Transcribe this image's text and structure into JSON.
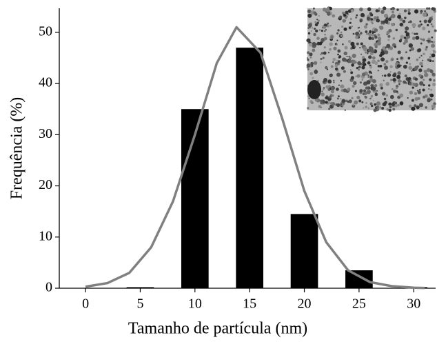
{
  "chart_data": {
    "type": "bar",
    "x_label": "Tamanho de partícula (nm)",
    "y_label": "Frequência (%)",
    "x": [
      5,
      10,
      15,
      20,
      25,
      30
    ],
    "values": [
      0.2,
      35,
      47,
      14.5,
      3.5,
      0.2
    ],
    "color": "#000000",
    "curve": {
      "type": "line",
      "color": "#808080",
      "x": [
        0,
        2,
        4,
        6,
        8,
        10,
        12,
        13.8,
        16,
        18,
        20,
        22,
        24,
        26,
        28,
        30,
        31
      ],
      "values": [
        0.3,
        1,
        3,
        8,
        17,
        30,
        44,
        51,
        46,
        33,
        19,
        9,
        3.5,
        1.2,
        0.4,
        0.1,
        0.05
      ]
    },
    "xlim": [
      -2.4,
      32
    ],
    "ylim": [
      0,
      54.7
    ],
    "xticks": [
      0,
      5,
      10,
      15,
      20,
      25,
      30
    ],
    "yticks": [
      0,
      10,
      20,
      30,
      40,
      50
    ]
  }
}
